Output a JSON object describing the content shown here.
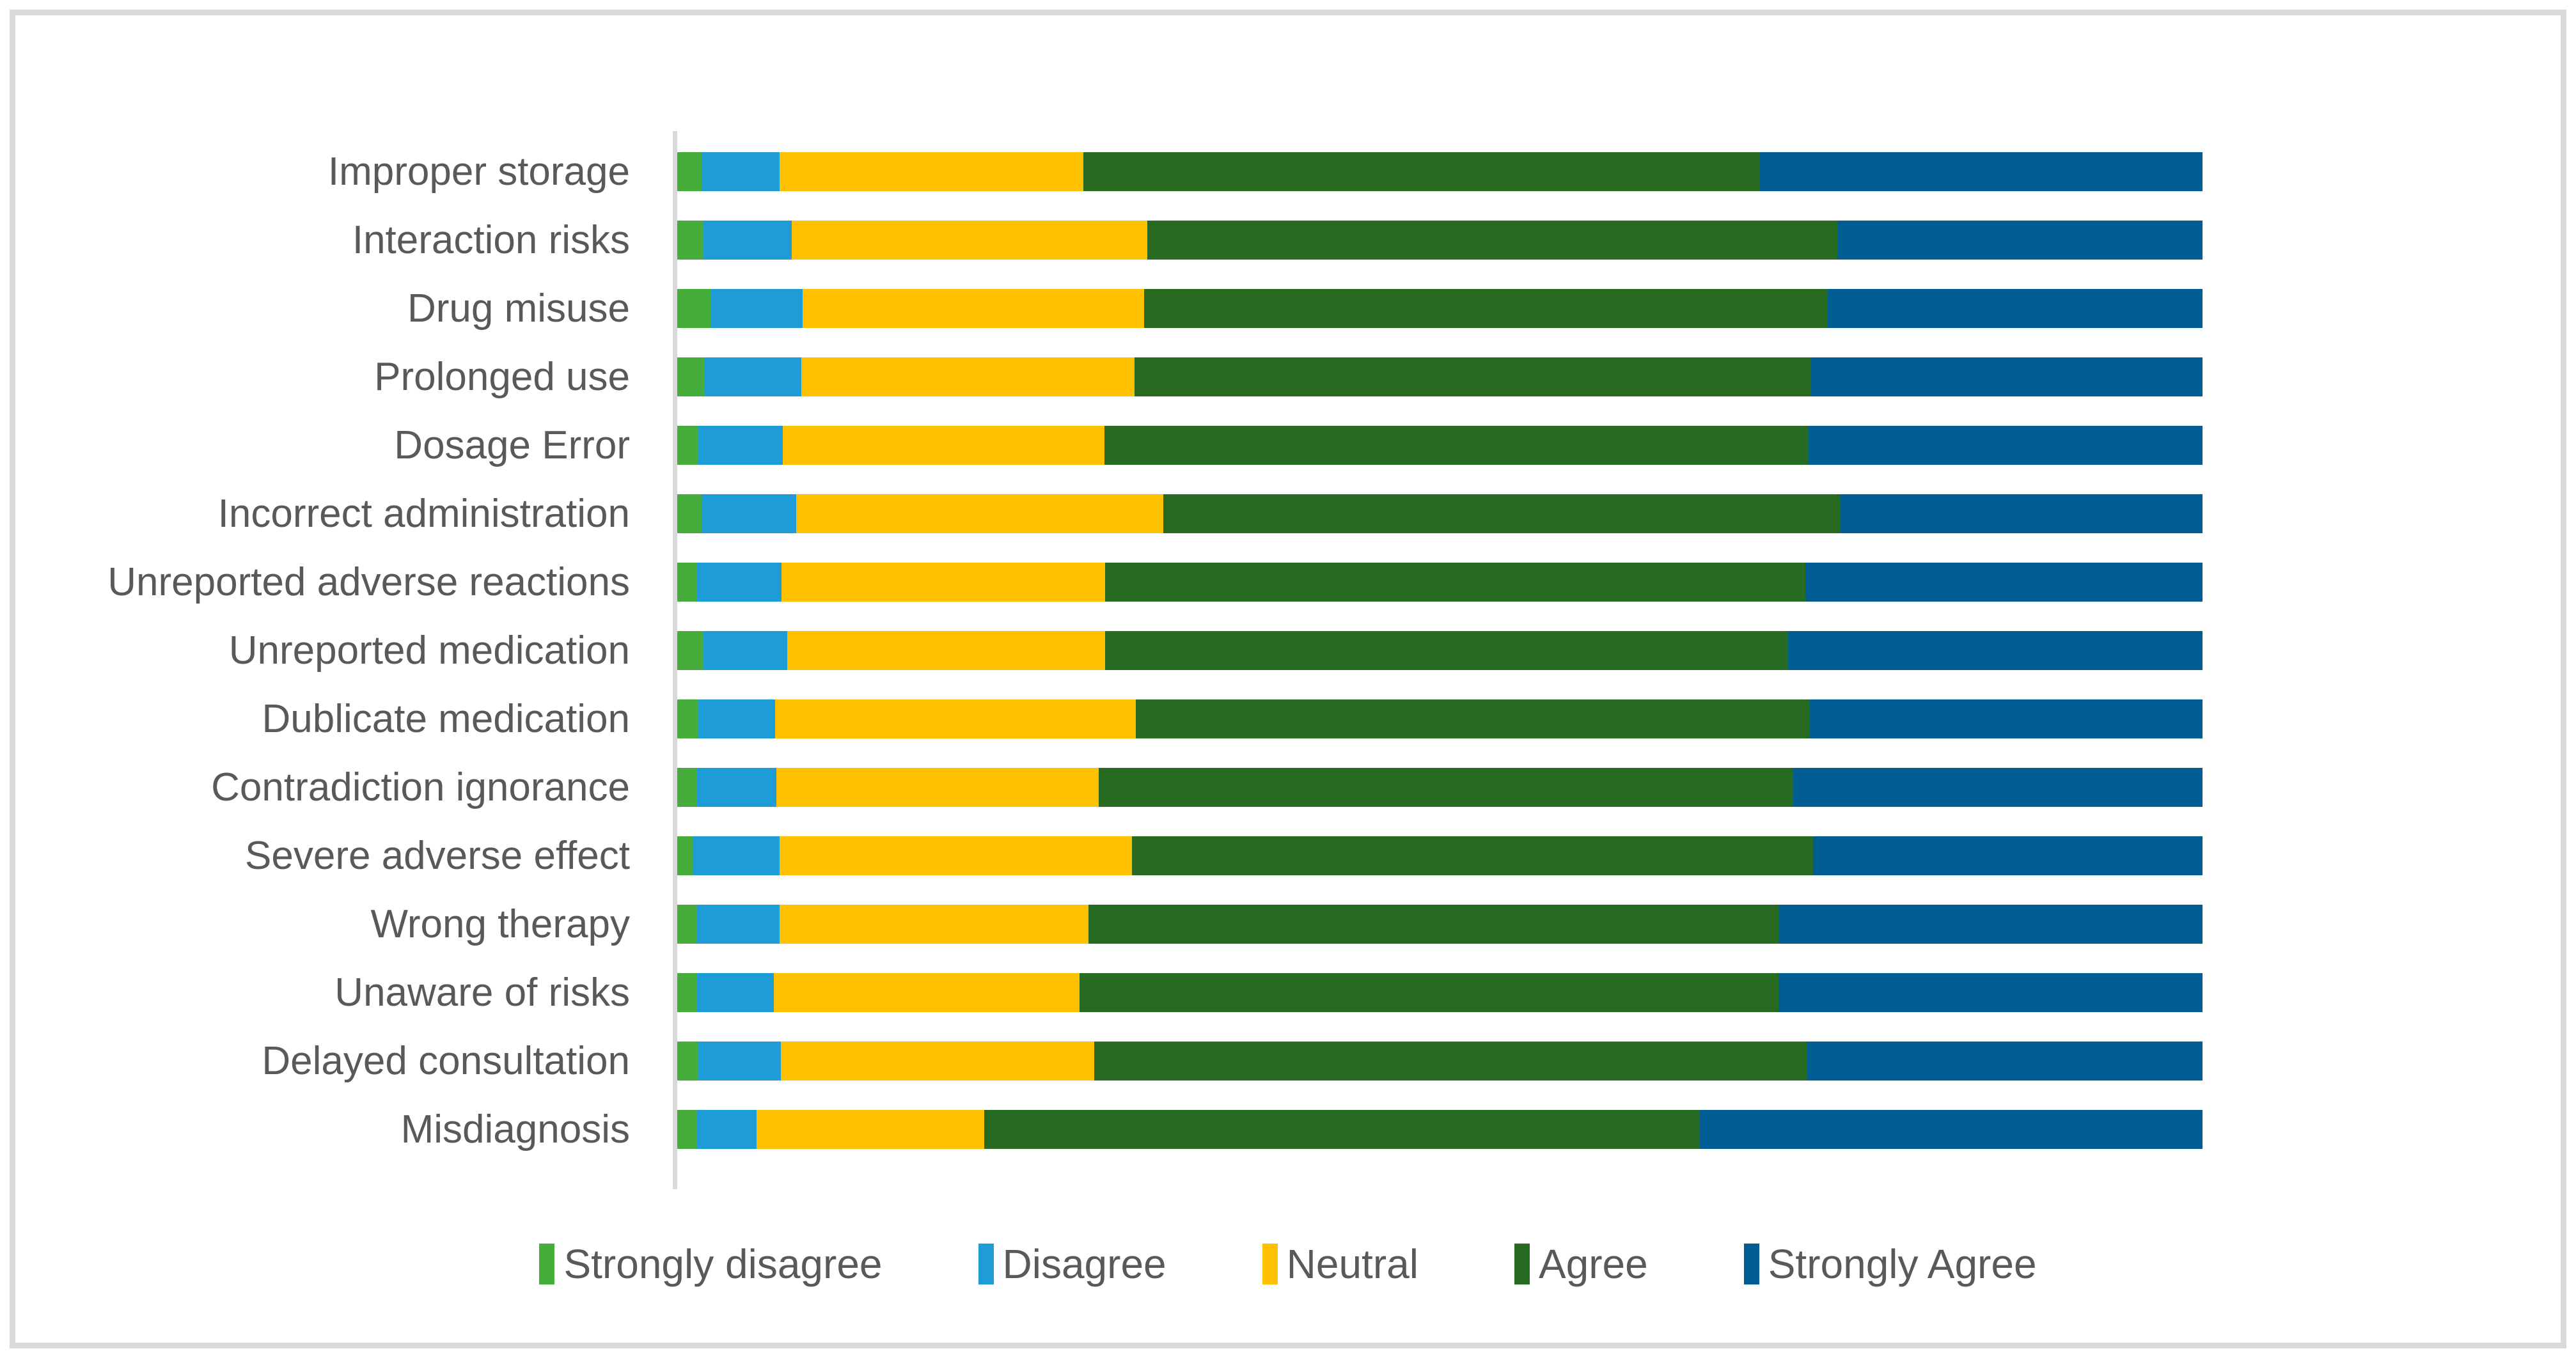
{
  "figure": {
    "title": "",
    "background_color": "#FFFFFF",
    "frame_border_color": "#D9D9D9",
    "axis_line_color": "#D9D9D9",
    "text_color": "#595959"
  },
  "chart_data": {
    "type": "bar",
    "orientation": "horizontal",
    "stacked": true,
    "unit": "percent",
    "xlim": [
      0,
      100
    ],
    "grid": false,
    "legend_position": "bottom",
    "title": "",
    "xlabel": "",
    "ylabel": "",
    "categories": [
      "Improper storage",
      "Interaction risks",
      "Drug misuse",
      "Prolonged use",
      "Dosage Error",
      "Incorrect administration",
      "Unreported adverse reactions",
      "Unreported medication",
      "Dublicate medication",
      "Contradiction ignorance",
      "Severe adverse effect",
      "Wrong therapy",
      "Unaware of risks",
      "Delayed consultation",
      "Misdiagnosis"
    ],
    "series": [
      {
        "name": "Strongly disagree",
        "color": "#46AD3C",
        "values": [
          1.6,
          1.7,
          2.2,
          1.8,
          1.4,
          1.6,
          1.3,
          1.7,
          1.4,
          1.3,
          1.0,
          1.3,
          1.3,
          1.4,
          1.3
        ]
      },
      {
        "name": "Disagree",
        "color": "#1E9CD8",
        "values": [
          5.1,
          5.8,
          6.0,
          6.3,
          5.5,
          6.2,
          5.5,
          5.5,
          5.0,
          5.2,
          5.7,
          5.4,
          5.0,
          5.4,
          3.9
        ]
      },
      {
        "name": "Neutral",
        "color": "#FFC000",
        "values": [
          19.9,
          23.3,
          22.3,
          21.8,
          21.1,
          24.0,
          21.2,
          20.8,
          23.6,
          21.1,
          23.1,
          20.2,
          20.0,
          20.5,
          14.9
        ]
      },
      {
        "name": "Agree",
        "color": "#276B23",
        "values": [
          44.3,
          45.2,
          44.7,
          44.3,
          46.1,
          44.3,
          45.8,
          44.7,
          44.1,
          45.5,
          44.6,
          45.2,
          45.7,
          46.7,
          46.8
        ]
      },
      {
        "name": "Strongly Agree",
        "color": "#005E94",
        "values": [
          29.0,
          23.9,
          24.5,
          25.6,
          25.8,
          23.7,
          26.0,
          27.1,
          25.7,
          26.8,
          25.5,
          27.7,
          27.7,
          25.9,
          32.9
        ]
      }
    ]
  }
}
